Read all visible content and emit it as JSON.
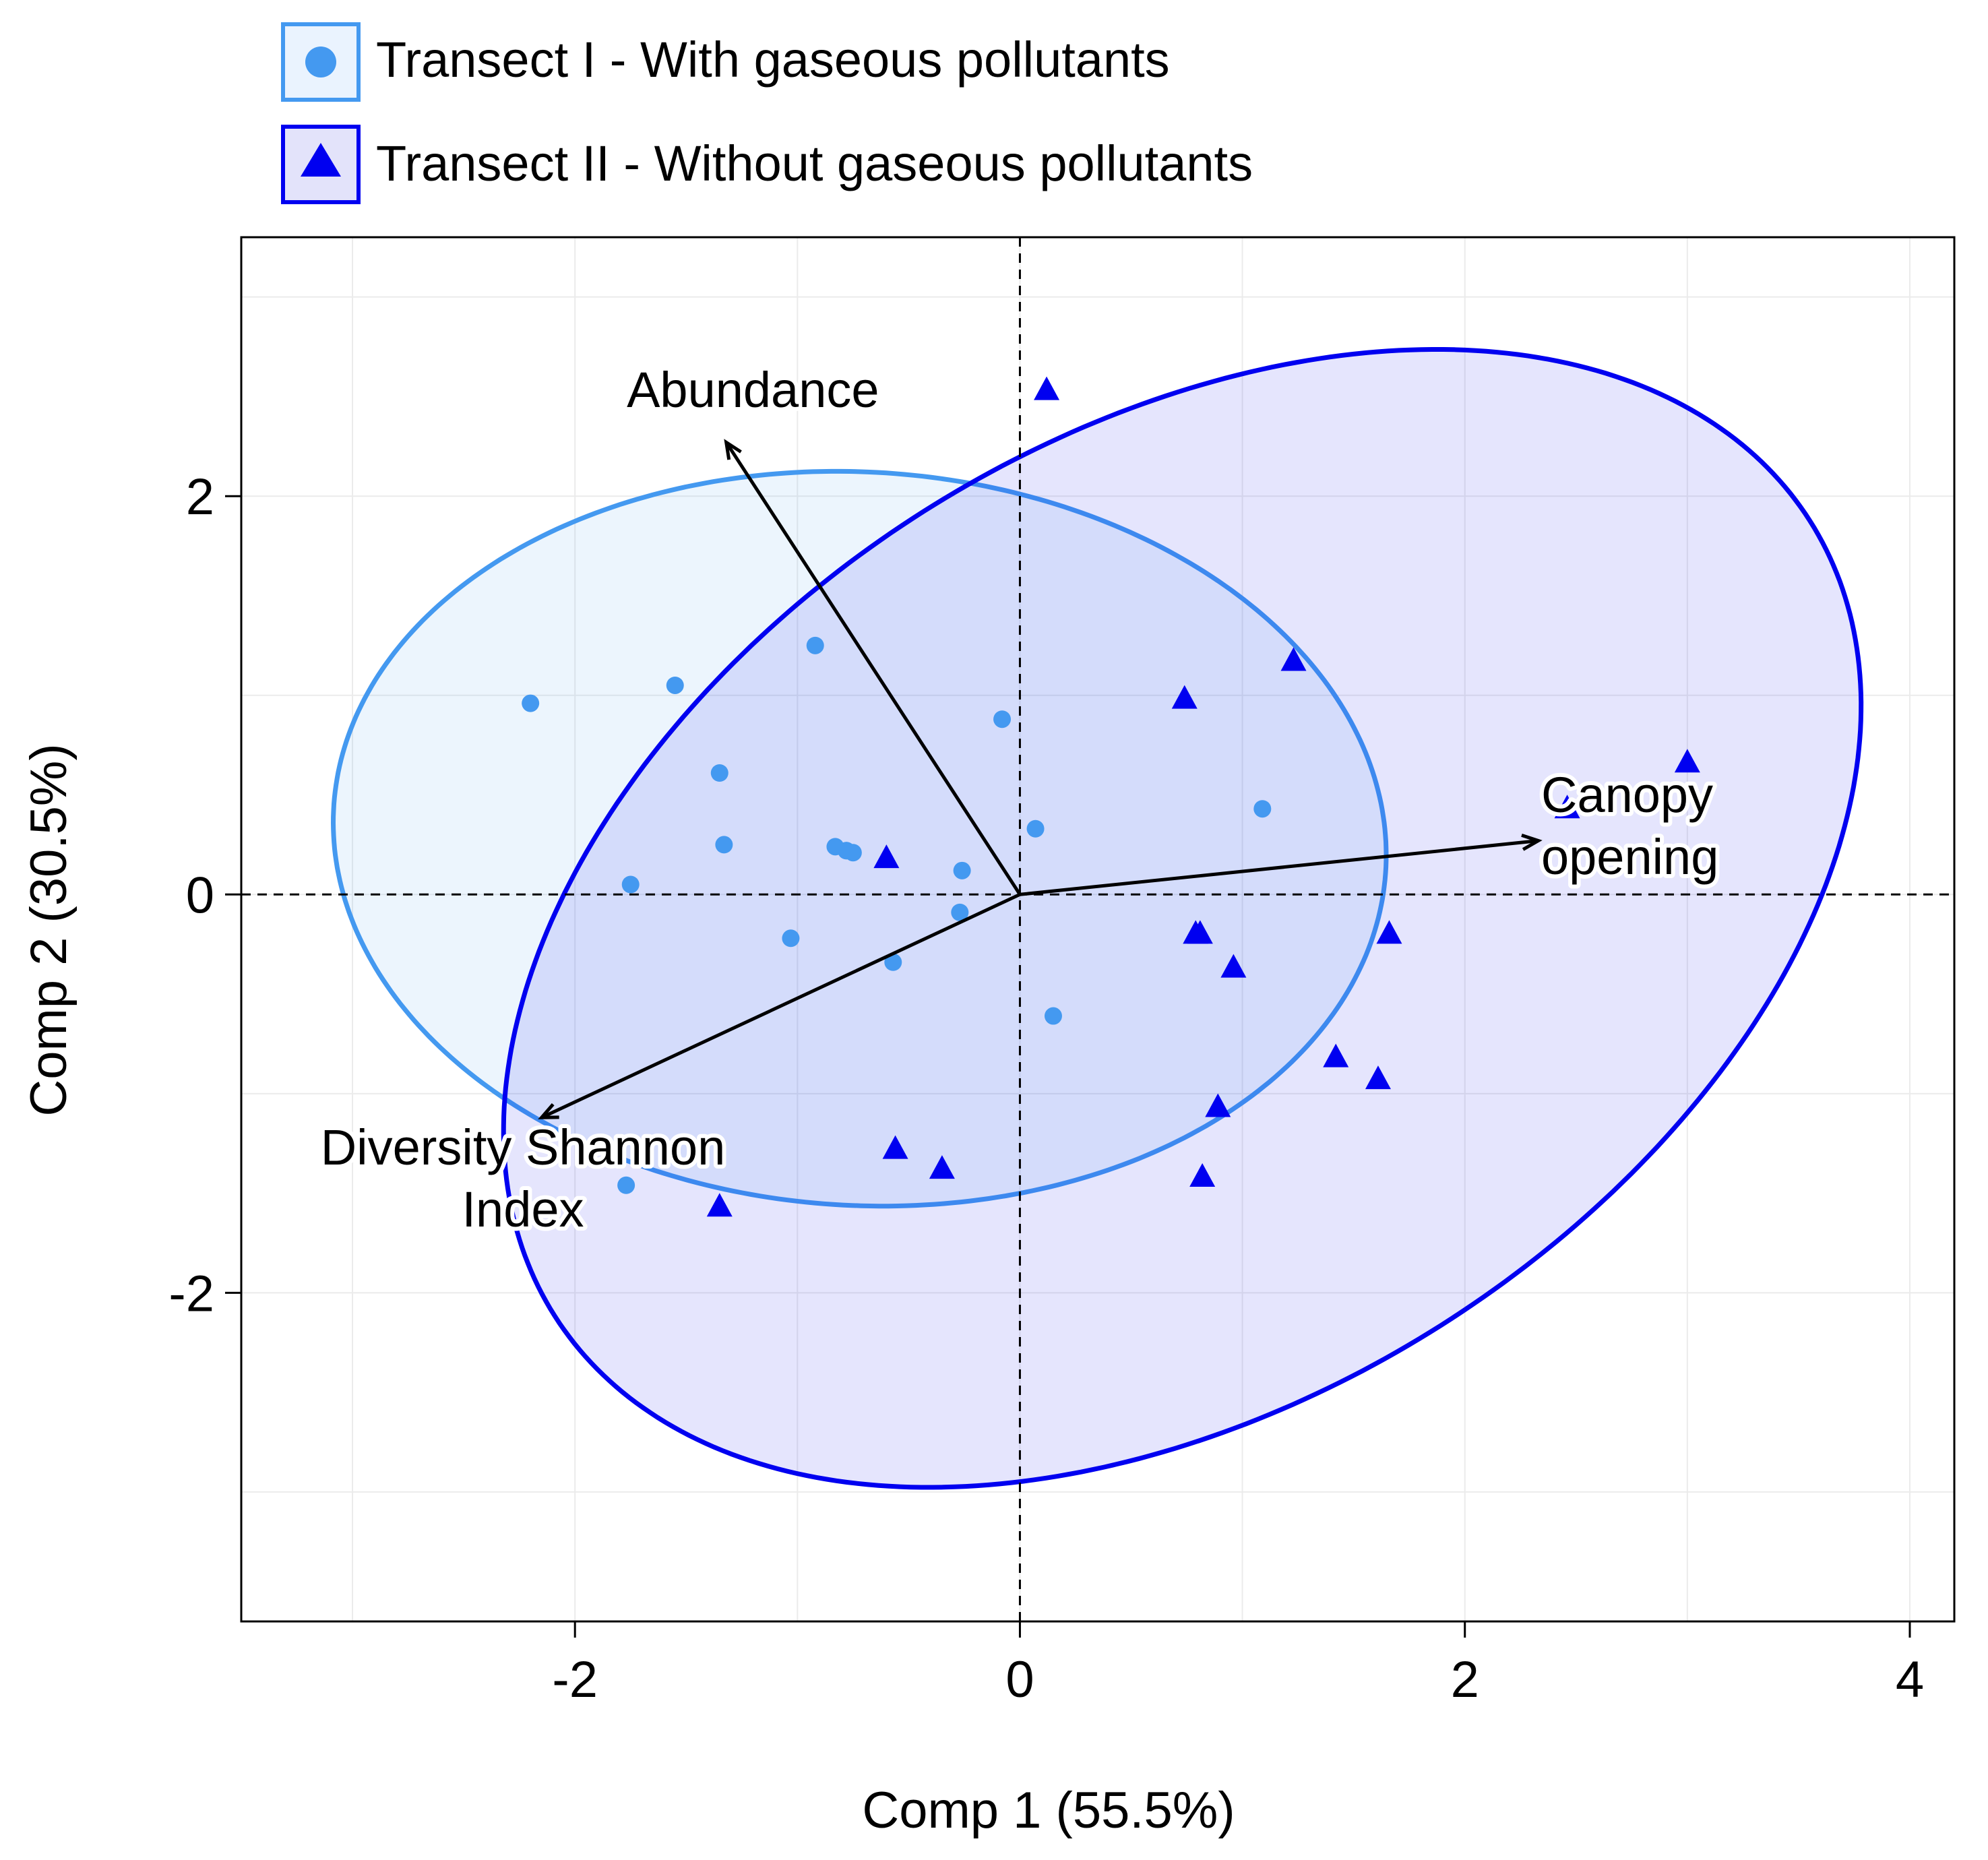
{
  "chart_data": {
    "type": "scatter",
    "subtype": "PCA biplot",
    "title": "",
    "xlabel": "Comp 1 (55.5%)",
    "ylabel": "Comp 2 (30.5%)",
    "xlim": [
      -3.5,
      4.2
    ],
    "ylim": [
      -3.65,
      3.3
    ],
    "xticks": [
      -2,
      0,
      2,
      4
    ],
    "yticks": [
      -2,
      0,
      2
    ],
    "xtick_labels": [
      "-2",
      "0",
      "2",
      "4"
    ],
    "ytick_labels": [
      "-2",
      "0",
      "2"
    ],
    "grid": true,
    "grid_minor_x": [
      -3,
      -1,
      1,
      3
    ],
    "grid_minor_y": [
      -3,
      -1,
      1,
      3
    ],
    "reference_lines": {
      "x": 0,
      "y": 0,
      "style": "dashed"
    },
    "legend": {
      "position": "top-left, outside plot",
      "entries": [
        {
          "label": "Transect I - With gaseous pollutants",
          "marker": "circle",
          "color": "#4499F0"
        },
        {
          "label": "Transect II - Without gaseous pollutants",
          "marker": "triangle",
          "color": "#0000F0"
        }
      ]
    },
    "series": [
      {
        "name": "Transect I - With gaseous pollutants",
        "marker": "circle",
        "color": "#4499F0",
        "points": [
          [
            -2.2,
            0.96
          ],
          [
            -1.55,
            1.05
          ],
          [
            -0.92,
            1.25
          ],
          [
            -1.35,
            0.61
          ],
          [
            -1.33,
            0.25
          ],
          [
            -1.75,
            0.05
          ],
          [
            -0.83,
            0.24
          ],
          [
            -0.78,
            0.22
          ],
          [
            -0.78,
            0.22
          ],
          [
            -0.75,
            0.21
          ],
          [
            -0.08,
            0.88
          ],
          [
            0.07,
            0.33
          ],
          [
            -0.26,
            0.12
          ],
          [
            -0.27,
            -0.09
          ],
          [
            -1.03,
            -0.22
          ],
          [
            -0.57,
            -0.34
          ],
          [
            0.15,
            -0.61
          ],
          [
            1.09,
            0.43
          ],
          [
            -1.77,
            -1.46
          ]
        ],
        "ellipse": {
          "center": [
            -0.72,
            0.28
          ],
          "rx": 2.37,
          "ry": 1.84,
          "rotation_deg": -5,
          "fill": "#4499F0",
          "fill_opacity": 0.1,
          "stroke": "#4499F0"
        }
      },
      {
        "name": "Transect II - Without gaseous pollutants",
        "marker": "triangle",
        "color": "#0000F0",
        "points": [
          [
            0.12,
            2.53
          ],
          [
            1.23,
            1.17
          ],
          [
            0.74,
            0.98
          ],
          [
            3.0,
            0.66
          ],
          [
            2.46,
            0.43
          ],
          [
            -0.6,
            0.18
          ],
          [
            0.79,
            -0.2
          ],
          [
            0.81,
            -0.2
          ],
          [
            0.96,
            -0.37
          ],
          [
            1.66,
            -0.2
          ],
          [
            1.42,
            -0.82
          ],
          [
            1.61,
            -0.93
          ],
          [
            0.89,
            -1.07
          ],
          [
            -0.56,
            -1.28
          ],
          [
            -0.35,
            -1.38
          ],
          [
            0.82,
            -1.42
          ],
          [
            -1.35,
            -1.57
          ]
        ],
        "ellipse": {
          "center": [
            0.73,
            -0.12
          ],
          "rx": 3.47,
          "ry": 2.33,
          "rotation_deg": 40,
          "fill": "#0000F0",
          "fill_opacity": 0.1,
          "stroke": "#0000F0"
        }
      }
    ],
    "loadings": [
      {
        "name": "Abundance",
        "x": -1.32,
        "y": 2.27,
        "label_lines": [
          "Abundance"
        ]
      },
      {
        "name": "Canopy opening",
        "x": 2.33,
        "y": 0.27,
        "label_lines": [
          "Canopy",
          "opening"
        ]
      },
      {
        "name": "Diversity Shannon Index",
        "x": -2.15,
        "y": -1.12,
        "label_lines": [
          "Diversity Shannon",
          "Index"
        ]
      }
    ]
  }
}
